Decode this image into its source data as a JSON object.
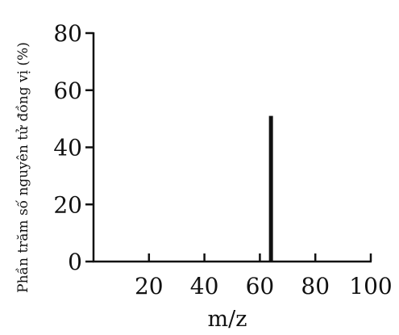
{
  "chart_data": {
    "type": "bar",
    "x": [
      64
    ],
    "values": [
      51
    ],
    "xlabel": "m/z",
    "ylabel": "Phần trăm số nguyên tử đồng vị (%)",
    "xlim": [
      0,
      100
    ],
    "ylim": [
      0,
      80
    ],
    "x_ticks": [
      20,
      40,
      60,
      80,
      100
    ],
    "y_ticks": [
      0,
      20,
      40,
      60,
      80
    ],
    "x_tick_labels": [
      "20",
      "40",
      "60",
      "80",
      "100"
    ],
    "y_tick_labels": [
      "0",
      "20",
      "40",
      "60",
      "80"
    ],
    "grid": false,
    "colors": {
      "bar": "#111111",
      "axis": "#111111"
    }
  }
}
